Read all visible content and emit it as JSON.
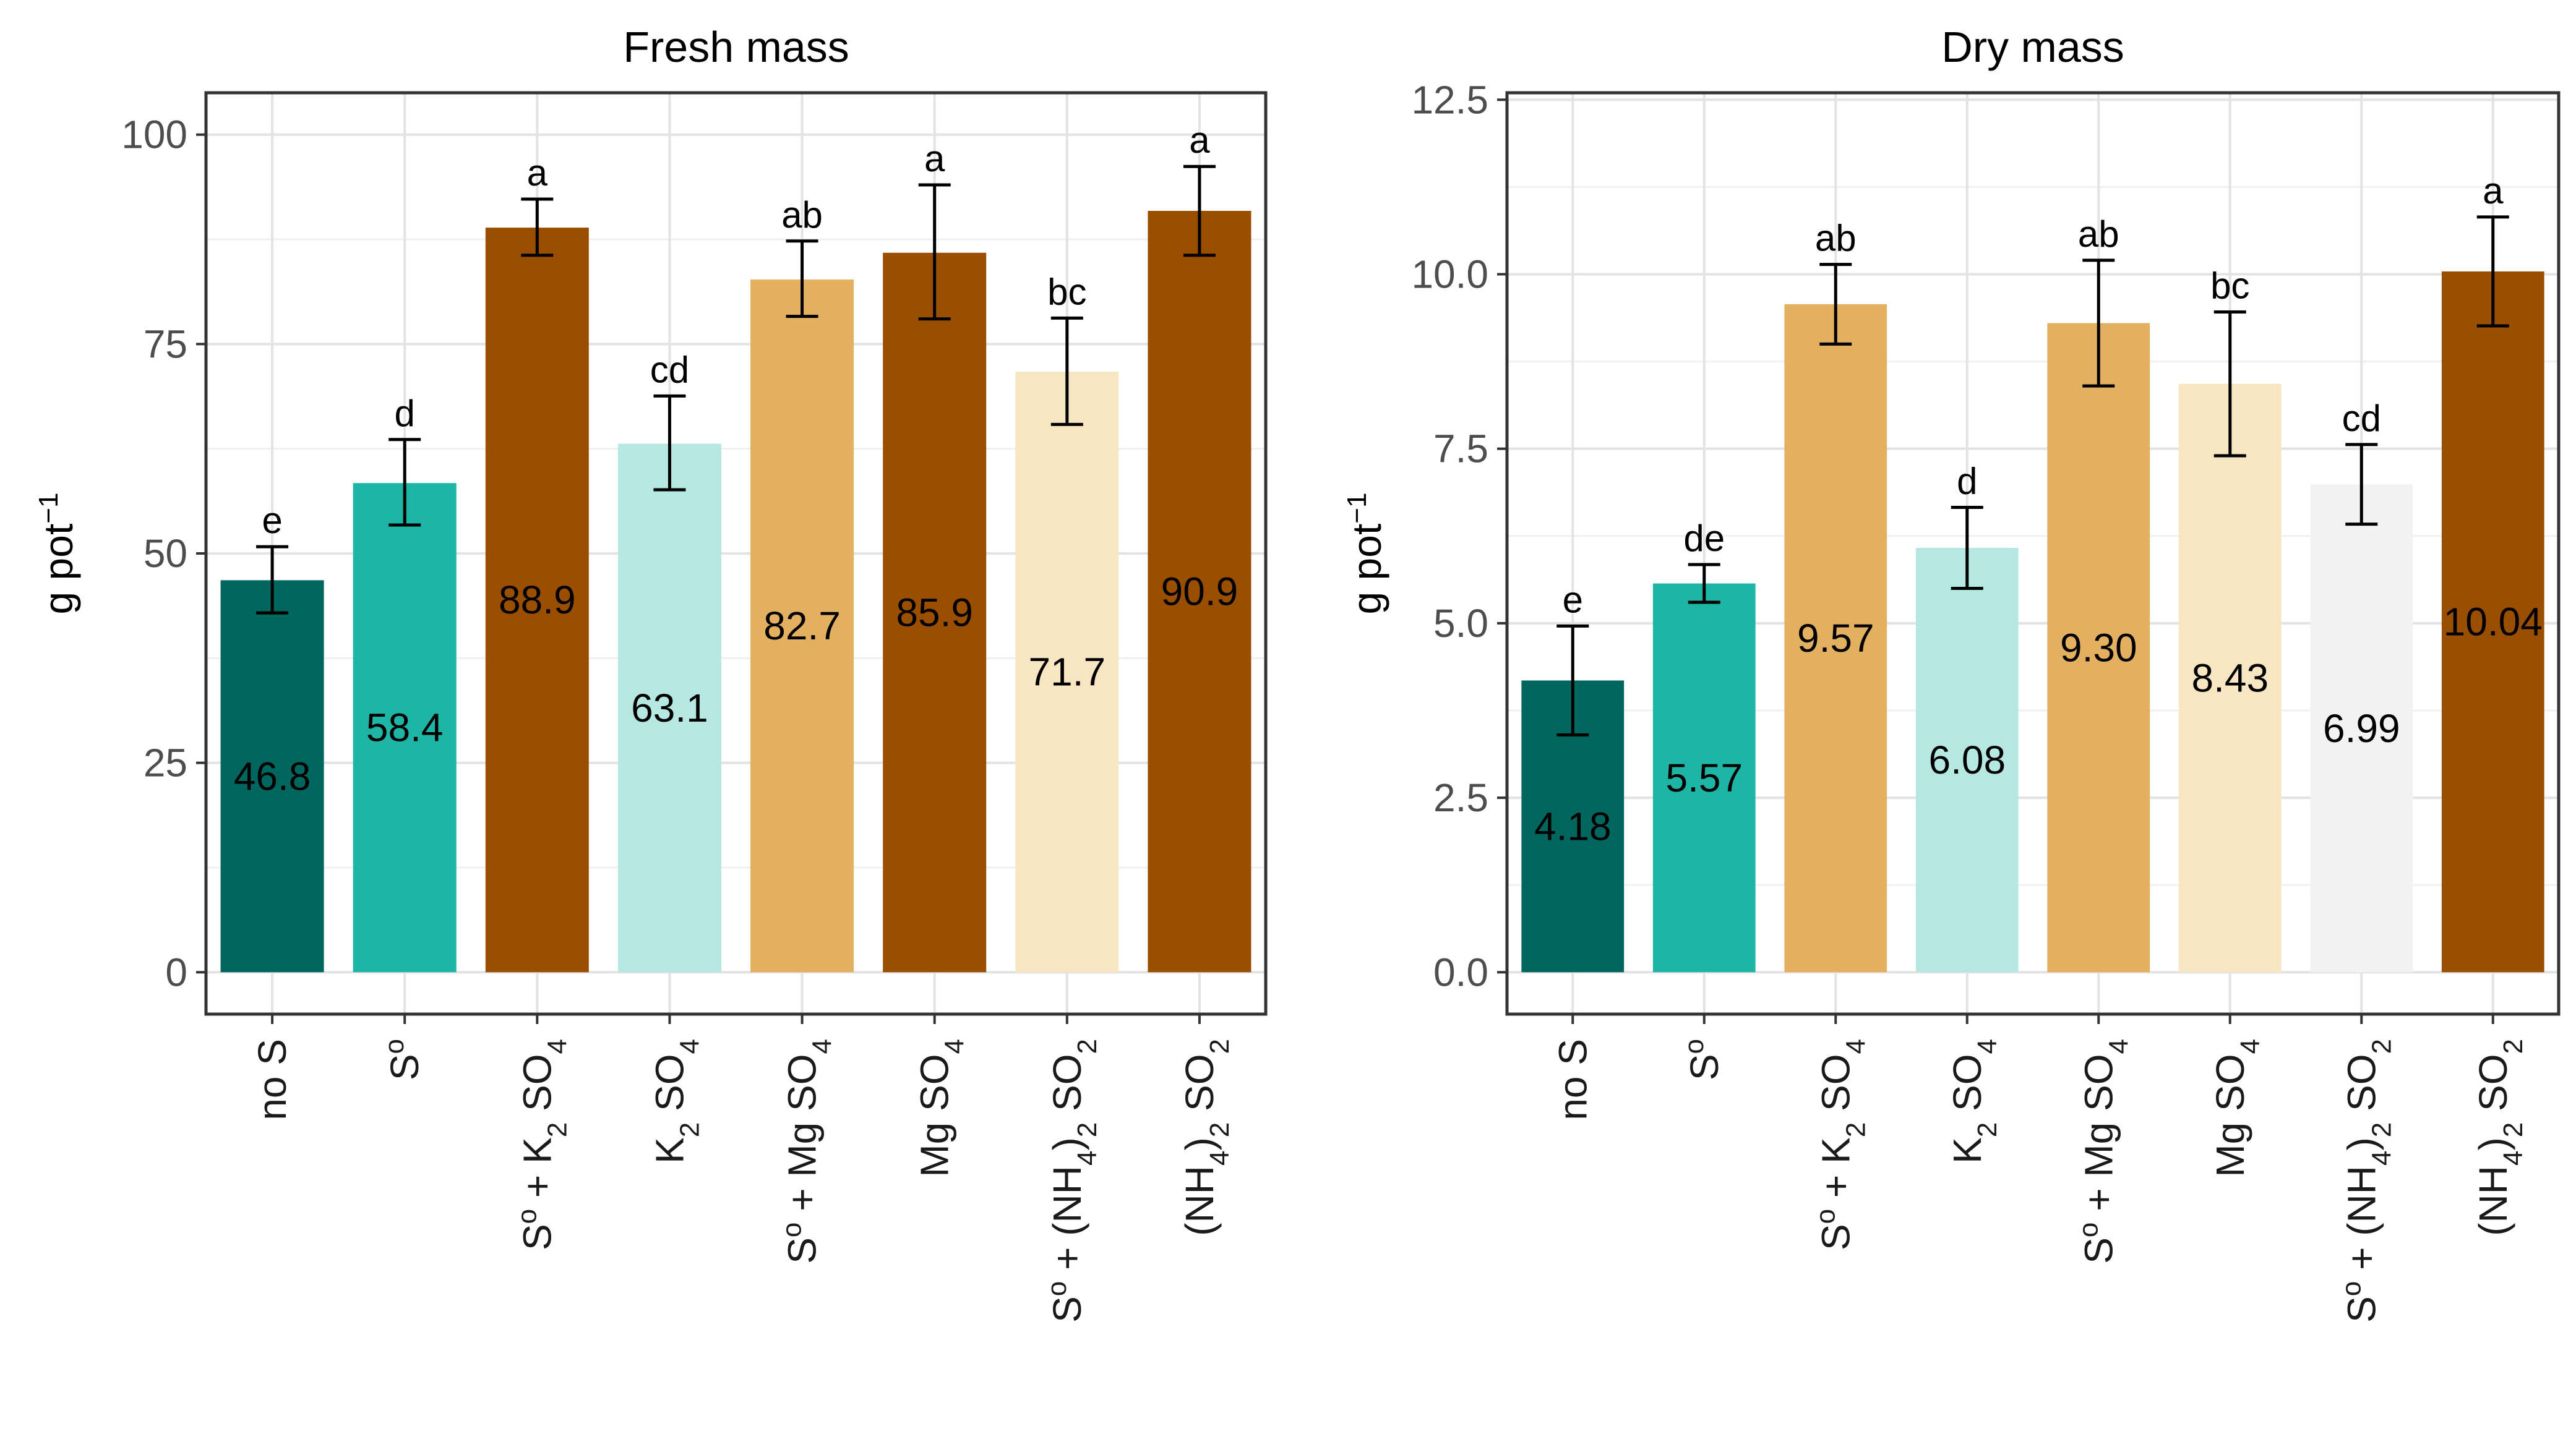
{
  "chart_data": [
    {
      "type": "bar",
      "title": "Fresh mass",
      "xlabel": "",
      "ylabel": "g pot",
      "ylabel_sup": "−1",
      "ylim": [
        -5,
        105
      ],
      "yticks": [
        "0",
        "25",
        "50",
        "75",
        "100"
      ],
      "ytick_values": [
        0,
        25,
        50,
        75,
        100
      ],
      "grid": true,
      "categories": [
        {
          "base": "no S"
        },
        {
          "base": "S",
          "sup": "o"
        },
        {
          "base": "S",
          "sup": "o",
          "rest": " + K",
          "sub": "2",
          "tail": " SO",
          "sub2": "4"
        },
        {
          "base": "K",
          "sub": "2",
          "tail": " SO",
          "sub2": "4"
        },
        {
          "base": "S",
          "sup": "o",
          "rest": " + Mg SO",
          "sub": "4"
        },
        {
          "base": "Mg SO",
          "sub": "4"
        },
        {
          "base": "S",
          "sup": "o",
          "rest": " + (NH",
          "sub": "4",
          "tail": ")",
          "sub2": "2",
          "tail2": " SO",
          "sub3": "2"
        },
        {
          "base": "(NH",
          "sub": "4",
          "tail": ")",
          "sub2": "2",
          "tail2": " SO",
          "sub3": "2"
        }
      ],
      "values": [
        46.8,
        58.4,
        88.9,
        63.1,
        82.7,
        85.9,
        71.7,
        90.9
      ],
      "value_labels": [
        "46.8",
        "58.4",
        "88.9",
        "63.1",
        "82.7",
        "85.9",
        "71.7",
        "90.9"
      ],
      "error_low": [
        42.9,
        53.4,
        85.6,
        57.6,
        78.3,
        78.0,
        65.4,
        85.6
      ],
      "error_high": [
        50.8,
        63.6,
        92.3,
        68.8,
        87.3,
        94.0,
        78.1,
        96.2
      ],
      "letters": [
        "e",
        "d",
        "a",
        "cd",
        "ab",
        "a",
        "bc",
        "a"
      ],
      "colors": [
        "#01665e",
        "#1eb5a6",
        "#9a4e00",
        "#b6e8e2",
        "#e2b060",
        "#9a4e00",
        "#f8e6c3",
        "#9a4e00"
      ]
    },
    {
      "type": "bar",
      "title": "Dry mass",
      "xlabel": "",
      "ylabel": "g pot",
      "ylabel_sup": "−1",
      "ylim": [
        -0.6,
        12.6
      ],
      "yticks": [
        "0.0",
        "2.5",
        "5.0",
        "7.5",
        "10.0",
        "12.5"
      ],
      "ytick_values": [
        0,
        2.5,
        5,
        7.5,
        10,
        12.5
      ],
      "grid": true,
      "categories": [
        {
          "base": "no S"
        },
        {
          "base": "S",
          "sup": "o"
        },
        {
          "base": "S",
          "sup": "o",
          "rest": " + K",
          "sub": "2",
          "tail": " SO",
          "sub2": "4"
        },
        {
          "base": "K",
          "sub": "2",
          "tail": " SO",
          "sub2": "4"
        },
        {
          "base": "S",
          "sup": "o",
          "rest": " + Mg SO",
          "sub": "4"
        },
        {
          "base": "Mg SO",
          "sub": "4"
        },
        {
          "base": "S",
          "sup": "o",
          "rest": " + (NH",
          "sub": "4",
          "tail": ")",
          "sub2": "2",
          "tail2": " SO",
          "sub3": "2"
        },
        {
          "base": "(NH",
          "sub": "4",
          "tail": ")",
          "sub2": "2",
          "tail2": " SO",
          "sub3": "2"
        }
      ],
      "values": [
        4.18,
        5.57,
        9.57,
        6.08,
        9.3,
        8.43,
        6.99,
        10.04
      ],
      "value_labels": [
        "4.18",
        "5.57",
        "9.57",
        "6.08",
        "9.30",
        "8.43",
        "6.99",
        "10.04"
      ],
      "error_low": [
        3.4,
        5.3,
        9.0,
        5.5,
        8.4,
        7.4,
        6.42,
        9.26
      ],
      "error_high": [
        4.96,
        5.84,
        10.14,
        6.66,
        10.2,
        9.46,
        7.56,
        10.82
      ],
      "letters": [
        "e",
        "de",
        "ab",
        "d",
        "ab",
        "bc",
        "cd",
        "a"
      ],
      "colors": [
        "#01665e",
        "#1eb5a6",
        "#e2b060",
        "#b6e8e2",
        "#e2b060",
        "#f8e6c3",
        "#f2f2f2",
        "#9a4e00"
      ]
    }
  ]
}
